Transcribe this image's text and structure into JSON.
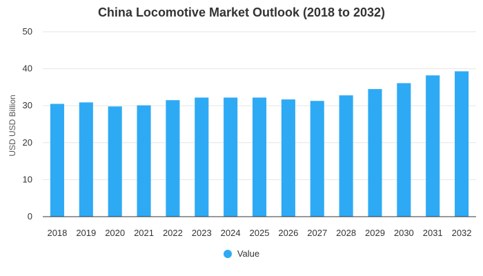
{
  "colors": {
    "bar": "#2eaaf5",
    "grid": "#e6e6e6",
    "axis": "#333333"
  },
  "chart_data": {
    "type": "bar",
    "title": "China Locomotive Market Outlook (2018 to 2032)",
    "xlabel": "",
    "ylabel": "USD USD Billion",
    "ylim": [
      0,
      50
    ],
    "yticks": [
      0,
      10,
      20,
      30,
      40,
      50
    ],
    "categories": [
      "2018",
      "2019",
      "2020",
      "2021",
      "2022",
      "2023",
      "2024",
      "2025",
      "2026",
      "2027",
      "2028",
      "2029",
      "2030",
      "2031",
      "2032"
    ],
    "series": [
      {
        "name": "Value",
        "values": [
          30.5,
          30.9,
          29.8,
          30.1,
          31.5,
          32.2,
          32.2,
          32.2,
          31.7,
          31.3,
          32.8,
          34.5,
          36.1,
          38.2,
          39.3
        ]
      }
    ],
    "grid": true,
    "legend": "bottom"
  }
}
